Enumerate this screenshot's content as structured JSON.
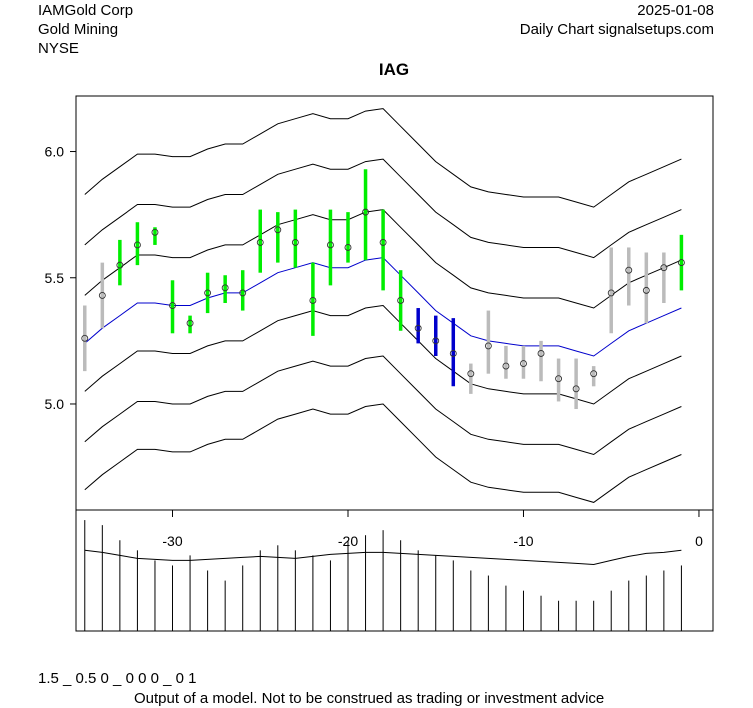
{
  "header": {
    "company": "IAMGold Corp",
    "industry": "Gold Mining",
    "exchange": "NYSE",
    "date": "2025-01-08",
    "source": "Daily Chart signalsetups.com"
  },
  "footer": {
    "code": "1.5 _ 0.5 0 _ 0 0 0 _ 0 1",
    "disclaimer": "Output of a model. Not to be construed as trading or investment advice"
  },
  "colors": {
    "up_signal": "#00ee00",
    "down_signal": "#0000cc",
    "neutral": "#bbbbbb",
    "center_band": "#0000cc",
    "bands": "#000000"
  },
  "chart_data": {
    "type": "line",
    "title": "IAG",
    "xlim": [
      -35.5,
      0.8
    ],
    "ylim": [
      4.58,
      6.22
    ],
    "yticks": [
      5.0,
      5.5,
      6.0
    ],
    "ytick_labels": [
      "5.0",
      "5.5",
      "6.0"
    ],
    "xticks": [
      -30,
      -20,
      -10,
      0
    ],
    "xtick_labels": [
      "-30",
      "-20",
      "-10",
      "0"
    ],
    "x": [
      -35,
      -34,
      -33,
      -32,
      -31,
      -30,
      -29,
      -28,
      -27,
      -26,
      -25,
      -24,
      -23,
      -22,
      -21,
      -20,
      -19,
      -18,
      -17,
      -16,
      -15,
      -14,
      -13,
      -12,
      -11,
      -10,
      -9,
      -8,
      -7,
      -6,
      -5,
      -4,
      -3,
      -2,
      -1
    ],
    "bars": {
      "low": [
        5.13,
        5.3,
        5.47,
        5.55,
        5.63,
        5.28,
        5.28,
        5.36,
        5.4,
        5.37,
        5.52,
        5.56,
        5.54,
        5.27,
        5.47,
        5.56,
        5.57,
        5.45,
        5.29,
        5.24,
        5.19,
        5.07,
        5.04,
        5.12,
        5.1,
        5.1,
        5.09,
        5.01,
        4.98,
        5.07,
        5.28,
        5.39,
        5.32,
        5.4,
        5.45
      ],
      "high": [
        5.39,
        5.56,
        5.65,
        5.72,
        5.7,
        5.49,
        5.35,
        5.52,
        5.51,
        5.53,
        5.77,
        5.76,
        5.77,
        5.56,
        5.77,
        5.76,
        5.93,
        5.77,
        5.53,
        5.38,
        5.35,
        5.34,
        5.16,
        5.37,
        5.23,
        5.23,
        5.25,
        5.18,
        5.18,
        5.15,
        5.62,
        5.62,
        5.6,
        5.6,
        5.67
      ],
      "close": [
        5.26,
        5.43,
        5.55,
        5.63,
        5.68,
        5.39,
        5.32,
        5.44,
        5.46,
        5.44,
        5.64,
        5.69,
        5.64,
        5.41,
        5.63,
        5.62,
        5.76,
        5.64,
        5.41,
        5.3,
        5.25,
        5.2,
        5.12,
        5.23,
        5.15,
        5.16,
        5.2,
        5.1,
        5.06,
        5.12,
        5.44,
        5.53,
        5.45,
        5.54,
        5.56
      ],
      "signal": [
        "neutral",
        "neutral",
        "up",
        "up",
        "up",
        "up",
        "up",
        "up",
        "up",
        "up",
        "up",
        "up",
        "up",
        "up",
        "up",
        "up",
        "up",
        "up",
        "up",
        "down",
        "down",
        "down",
        "neutral",
        "neutral",
        "neutral",
        "neutral",
        "neutral",
        "neutral",
        "neutral",
        "neutral",
        "neutral",
        "neutral",
        "neutral",
        "neutral",
        "up"
      ]
    },
    "bands": {
      "center": [
        5.24,
        5.3,
        5.35,
        5.4,
        5.4,
        5.39,
        5.39,
        5.42,
        5.44,
        5.44,
        5.48,
        5.52,
        5.54,
        5.56,
        5.54,
        5.54,
        5.57,
        5.58,
        5.51,
        5.44,
        5.37,
        5.32,
        5.27,
        5.25,
        5.24,
        5.23,
        5.23,
        5.23,
        5.21,
        5.19,
        5.24,
        5.29,
        5.32,
        5.35,
        5.38
      ],
      "offsets": [
        -0.58,
        -0.39,
        -0.19,
        0.19,
        0.39,
        0.59
      ]
    },
    "volume": [
      110,
      105,
      90,
      80,
      70,
      65,
      75,
      60,
      50,
      65,
      80,
      85,
      80,
      75,
      70,
      90,
      95,
      100,
      90,
      80,
      75,
      70,
      60,
      55,
      45,
      40,
      35,
      30,
      30,
      30,
      40,
      50,
      55,
      60,
      65
    ],
    "volume_line": [
      80,
      78,
      75,
      72,
      71,
      70,
      70,
      71,
      72,
      73,
      74,
      73,
      72,
      74,
      76,
      77,
      78,
      78,
      77,
      76,
      75,
      74,
      73,
      72,
      71,
      70,
      69,
      68,
      67,
      66,
      70,
      74,
      77,
      78,
      80
    ]
  }
}
